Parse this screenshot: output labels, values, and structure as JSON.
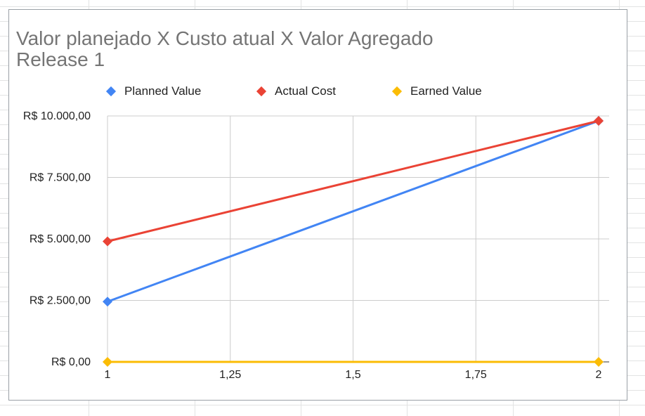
{
  "chart_data": {
    "type": "line",
    "title_line1": "Valor planejado X Custo atual X Valor Agregado",
    "title_line2": "Release 1",
    "xlabel": "",
    "ylabel": "",
    "xlim": [
      1,
      2
    ],
    "ylim": [
      0,
      10000
    ],
    "x_ticks": [
      "1",
      "1,25",
      "1,5",
      "1,75",
      "2"
    ],
    "x_tick_values": [
      1,
      1.25,
      1.5,
      1.75,
      2
    ],
    "y_ticks": [
      "R$ 0,00",
      "R$ 2.500,00",
      "R$ 5.000,00",
      "R$ 7.500,00",
      "R$ 10.000,00"
    ],
    "y_tick_values": [
      0,
      2500,
      5000,
      7500,
      10000
    ],
    "grid": true,
    "legend_position": "top",
    "series": [
      {
        "name": "Planned Value",
        "color": "#4285f4",
        "x": [
          1,
          2
        ],
        "values": [
          2450,
          9800
        ]
      },
      {
        "name": "Actual Cost",
        "color": "#ea4335",
        "x": [
          1,
          2
        ],
        "values": [
          4900,
          9800
        ]
      },
      {
        "name": "Earned Value",
        "color": "#fbbc04",
        "x": [
          1,
          2
        ],
        "values": [
          0,
          0
        ]
      }
    ]
  }
}
